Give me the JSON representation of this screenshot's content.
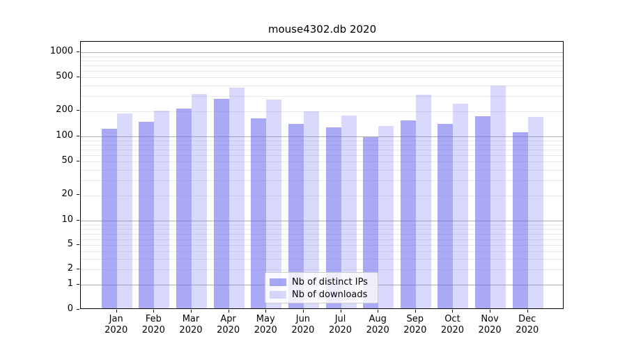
{
  "title": "mouse4302.db 2020",
  "chart_data": {
    "type": "bar",
    "title": "mouse4302.db 2020",
    "yscale": "symlog",
    "grid": true,
    "legend_position": "lower center",
    "ylim": [
      0,
      1330
    ],
    "yticks": [
      1000,
      500,
      200,
      100,
      50,
      20,
      10,
      5,
      2,
      1,
      0
    ],
    "categories": [
      "Jan",
      "Feb",
      "Mar",
      "Apr",
      "May",
      "Jun",
      "Jul",
      "Aug",
      "Sep",
      "Oct",
      "Nov",
      "Dec"
    ],
    "year_label": "2020",
    "series": [
      {
        "name": "Nb of distinct IPs",
        "color": "rgba(102,102,238,0.56)",
        "values": [
          122,
          145,
          210,
          272,
          160,
          138,
          125,
          97,
          153,
          137,
          170,
          110
        ]
      },
      {
        "name": "Nb of downloads",
        "color": "rgba(102,102,238,0.25)",
        "values": [
          183,
          200,
          315,
          372,
          270,
          195,
          175,
          130,
          305,
          240,
          390,
          168
        ]
      }
    ],
    "colors": {
      "grid_major": "#b0b0b0",
      "grid_minor": "#e9e9ee",
      "spine": "#000000"
    }
  }
}
